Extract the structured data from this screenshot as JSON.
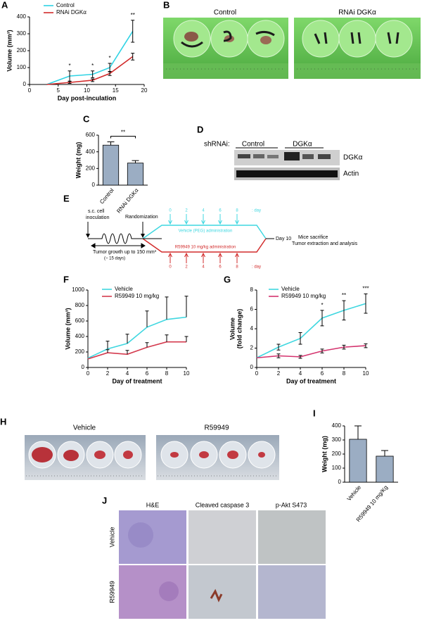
{
  "panel_labels": [
    "A",
    "B",
    "C",
    "D",
    "E",
    "F",
    "G",
    "H",
    "I",
    "J"
  ],
  "chart_data": [
    {
      "type": "line",
      "x_label": "Day post-inculation",
      "y_label": "Volume (mm³)",
      "x": [
        3,
        7,
        11,
        14,
        18
      ],
      "xlim": [
        0,
        20
      ],
      "xticks": [
        0,
        5,
        10,
        15,
        20
      ],
      "ylim": [
        0,
        400
      ],
      "yticks": [
        0,
        100,
        200,
        300,
        400
      ],
      "error_bars": "both",
      "series": [
        {
          "name": "Control",
          "color": "#2fd3e4",
          "values": [
            0,
            50,
            60,
            100,
            315
          ],
          "errors": [
            0,
            30,
            20,
            25,
            65
          ]
        },
        {
          "name": "RNAi DGKα",
          "color": "#d22b2b",
          "values": [
            0,
            12,
            25,
            65,
            165
          ],
          "errors": [
            0,
            6,
            8,
            12,
            20
          ]
        }
      ],
      "significance": [
        null,
        "*",
        "*",
        "*",
        "**"
      ]
    },
    {
      "type": "bar",
      "y_label": "Weight (mg)",
      "categories": [
        "Control",
        "RNAi DGKα"
      ],
      "values": [
        480,
        265
      ],
      "errors": [
        40,
        30
      ],
      "color": "#9badc3",
      "ylim": [
        0,
        600
      ],
      "yticks": [
        0,
        200,
        400,
        600
      ],
      "significance": "**"
    },
    {
      "type": "line",
      "x_label": "Day of treatment",
      "y_label": "Volume (mm³)",
      "x": [
        0,
        2,
        4,
        6,
        8,
        10
      ],
      "xlim": [
        0,
        10
      ],
      "xticks": [
        0,
        2,
        4,
        6,
        8,
        10
      ],
      "ylim": [
        0,
        1000
      ],
      "yticks": [
        0,
        200,
        400,
        600,
        800,
        1000
      ],
      "error_bars": "up",
      "series": [
        {
          "name": "Vehicle",
          "color": "#3fd7e0",
          "values": [
            120,
            240,
            310,
            520,
            620,
            650
          ],
          "errors": [
            0,
            100,
            120,
            210,
            290,
            270
          ]
        },
        {
          "name": "R59949 10 mg/kg",
          "color": "#d43a4e",
          "values": [
            110,
            190,
            170,
            260,
            330,
            330
          ],
          "errors": [
            0,
            40,
            50,
            60,
            90,
            70
          ]
        }
      ]
    },
    {
      "type": "line",
      "x_label": "Day of treatment",
      "y_label": [
        "Volume",
        "(fold change)"
      ],
      "x": [
        0,
        2,
        4,
        6,
        8,
        10
      ],
      "xlim": [
        0,
        10
      ],
      "xticks": [
        0,
        2,
        4,
        6,
        8,
        10
      ],
      "ylim": [
        0,
        8
      ],
      "yticks": [
        0,
        2,
        4,
        6,
        8
      ],
      "error_bars": "both",
      "series": [
        {
          "name": "Vehicle",
          "color": "#3fd7e0",
          "values": [
            1,
            2.1,
            3,
            5.1,
            5.9,
            6.6
          ],
          "errors": [
            0,
            0.3,
            0.6,
            0.8,
            1,
            1
          ]
        },
        {
          "name": "R59949 10 mg/kg",
          "color": "#d4336e",
          "values": [
            1,
            1.2,
            1.1,
            1.7,
            2.1,
            2.25
          ],
          "errors": [
            0,
            0.2,
            0.15,
            0.2,
            0.2,
            0.2
          ]
        }
      ],
      "significance": [
        null,
        null,
        null,
        "*",
        "**",
        "***"
      ]
    },
    {
      "type": "bar",
      "y_label": "Weight (mg)",
      "categories": [
        "Vehicle",
        "R59949 10 mg/Kg"
      ],
      "values": [
        305,
        185
      ],
      "errors": [
        95,
        40
      ],
      "color": "#9badc3",
      "ylim": [
        0,
        400
      ],
      "yticks": [
        0,
        100,
        200,
        300,
        400
      ]
    }
  ],
  "photos_b": {
    "groups": [
      "Control",
      "RNAi DGKα"
    ]
  },
  "blot_d": {
    "prefix": "shRNAi:",
    "groups": [
      "Control",
      "DGKα"
    ],
    "bands": [
      "DGKα",
      "Actin"
    ]
  },
  "schema_e": {
    "inoculation": [
      "s.c. cell",
      "inoculation"
    ],
    "randomization": "Randomization",
    "growth": "Tumor growth up to 150 mm³",
    "growth_time": "(~ 15 days)",
    "days": [
      0,
      2,
      4,
      6,
      8
    ],
    "day_unit": ": day",
    "vehicle_arm": "Vehicle (PEG) administration",
    "drug_arm": "R59949 10 mg/kg administration",
    "end_day": "Day 10",
    "end_steps": [
      "Mice sacrifice",
      "Tumor extraction and analysis"
    ]
  },
  "photos_h": {
    "groups": [
      "Vehicle",
      "R59949"
    ]
  },
  "histology_j": {
    "columns": [
      "H&E",
      "Cleaved caspase 3",
      "p-Akt S473"
    ],
    "rows": [
      "Vehicle",
      "R59949"
    ]
  }
}
